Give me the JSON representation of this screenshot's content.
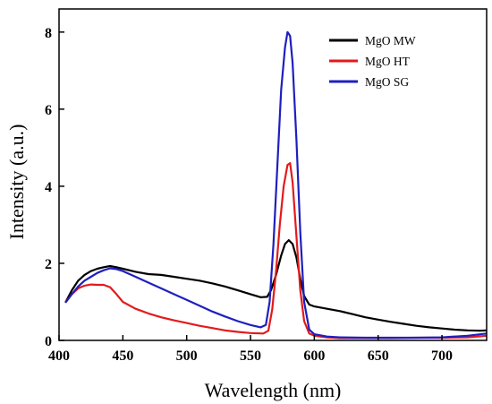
{
  "chart_data": {
    "type": "line",
    "xlabel": "Wavelength (nm)",
    "ylabel": "Intensity (a.u.)",
    "xlim": [
      400,
      735
    ],
    "ylim": [
      0,
      8.6
    ],
    "x_ticks": [
      400,
      450,
      500,
      550,
      600,
      650,
      700
    ],
    "y_ticks": [
      0,
      2,
      4,
      6,
      8
    ],
    "legend_position": "top-right",
    "grid": false,
    "series": [
      {
        "name": "MgO MW",
        "color": "#000000",
        "points": [
          [
            405,
            0.98
          ],
          [
            410,
            1.3
          ],
          [
            415,
            1.55
          ],
          [
            420,
            1.7
          ],
          [
            425,
            1.8
          ],
          [
            430,
            1.86
          ],
          [
            435,
            1.9
          ],
          [
            440,
            1.93
          ],
          [
            445,
            1.9
          ],
          [
            450,
            1.86
          ],
          [
            460,
            1.78
          ],
          [
            470,
            1.72
          ],
          [
            480,
            1.7
          ],
          [
            490,
            1.65
          ],
          [
            500,
            1.6
          ],
          [
            510,
            1.55
          ],
          [
            520,
            1.48
          ],
          [
            530,
            1.4
          ],
          [
            540,
            1.3
          ],
          [
            550,
            1.2
          ],
          [
            558,
            1.12
          ],
          [
            563,
            1.13
          ],
          [
            566,
            1.3
          ],
          [
            570,
            1.7
          ],
          [
            574,
            2.2
          ],
          [
            577,
            2.5
          ],
          [
            580,
            2.6
          ],
          [
            583,
            2.5
          ],
          [
            586,
            2.15
          ],
          [
            589,
            1.6
          ],
          [
            592,
            1.15
          ],
          [
            596,
            0.93
          ],
          [
            600,
            0.88
          ],
          [
            610,
            0.82
          ],
          [
            620,
            0.76
          ],
          [
            630,
            0.68
          ],
          [
            640,
            0.6
          ],
          [
            650,
            0.54
          ],
          [
            660,
            0.48
          ],
          [
            670,
            0.43
          ],
          [
            680,
            0.38
          ],
          [
            690,
            0.34
          ],
          [
            700,
            0.31
          ],
          [
            710,
            0.28
          ],
          [
            720,
            0.26
          ],
          [
            730,
            0.25
          ],
          [
            735,
            0.26
          ]
        ]
      },
      {
        "name": "MgO HT",
        "color": "#e31a1c",
        "points": [
          [
            405,
            0.98
          ],
          [
            410,
            1.2
          ],
          [
            415,
            1.35
          ],
          [
            420,
            1.42
          ],
          [
            425,
            1.45
          ],
          [
            430,
            1.44
          ],
          [
            435,
            1.44
          ],
          [
            440,
            1.38
          ],
          [
            445,
            1.2
          ],
          [
            450,
            1.0
          ],
          [
            460,
            0.82
          ],
          [
            470,
            0.7
          ],
          [
            480,
            0.6
          ],
          [
            490,
            0.52
          ],
          [
            500,
            0.45
          ],
          [
            510,
            0.38
          ],
          [
            520,
            0.32
          ],
          [
            530,
            0.26
          ],
          [
            540,
            0.22
          ],
          [
            550,
            0.19
          ],
          [
            560,
            0.18
          ],
          [
            564,
            0.25
          ],
          [
            567,
            0.8
          ],
          [
            570,
            1.8
          ],
          [
            573,
            3.0
          ],
          [
            576,
            4.0
          ],
          [
            579,
            4.55
          ],
          [
            581,
            4.6
          ],
          [
            583,
            4.1
          ],
          [
            586,
            2.7
          ],
          [
            589,
            1.3
          ],
          [
            592,
            0.5
          ],
          [
            596,
            0.18
          ],
          [
            600,
            0.12
          ],
          [
            610,
            0.08
          ],
          [
            620,
            0.06
          ],
          [
            640,
            0.06
          ],
          [
            660,
            0.06
          ],
          [
            680,
            0.07
          ],
          [
            700,
            0.07
          ],
          [
            720,
            0.08
          ],
          [
            735,
            0.12
          ]
        ]
      },
      {
        "name": "MgO SG",
        "color": "#1f1fbf",
        "points": [
          [
            405,
            0.98
          ],
          [
            410,
            1.2
          ],
          [
            415,
            1.4
          ],
          [
            420,
            1.55
          ],
          [
            425,
            1.65
          ],
          [
            430,
            1.75
          ],
          [
            435,
            1.82
          ],
          [
            440,
            1.87
          ],
          [
            445,
            1.85
          ],
          [
            450,
            1.8
          ],
          [
            460,
            1.65
          ],
          [
            470,
            1.5
          ],
          [
            480,
            1.35
          ],
          [
            490,
            1.2
          ],
          [
            500,
            1.05
          ],
          [
            510,
            0.9
          ],
          [
            520,
            0.75
          ],
          [
            530,
            0.62
          ],
          [
            540,
            0.5
          ],
          [
            550,
            0.4
          ],
          [
            558,
            0.34
          ],
          [
            562,
            0.4
          ],
          [
            565,
            1.0
          ],
          [
            568,
            2.5
          ],
          [
            571,
            4.5
          ],
          [
            574,
            6.5
          ],
          [
            577,
            7.6
          ],
          [
            579,
            8.0
          ],
          [
            581,
            7.9
          ],
          [
            583,
            7.2
          ],
          [
            586,
            5.2
          ],
          [
            589,
            2.8
          ],
          [
            592,
            1.0
          ],
          [
            596,
            0.28
          ],
          [
            600,
            0.16
          ],
          [
            610,
            0.1
          ],
          [
            620,
            0.08
          ],
          [
            640,
            0.07
          ],
          [
            660,
            0.07
          ],
          [
            680,
            0.07
          ],
          [
            700,
            0.08
          ],
          [
            720,
            0.12
          ],
          [
            735,
            0.18
          ]
        ]
      }
    ]
  }
}
